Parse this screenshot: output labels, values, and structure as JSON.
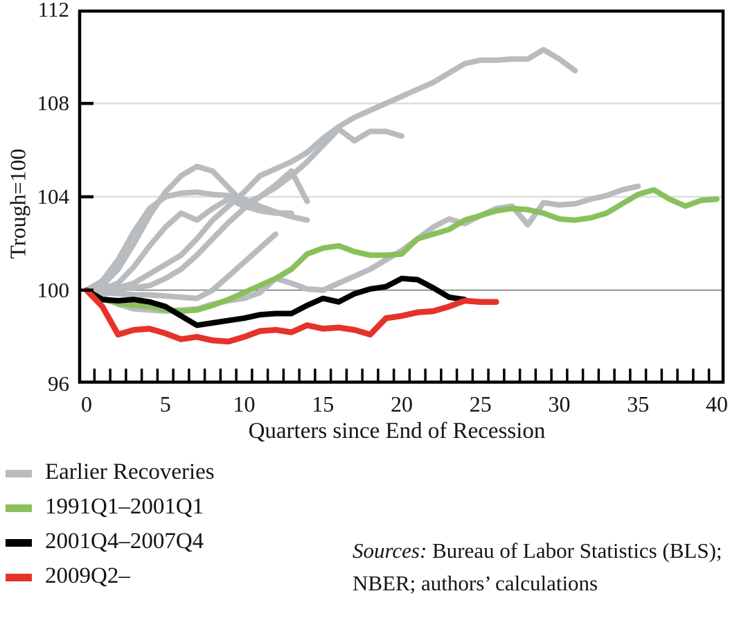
{
  "figure_type": "line-chart",
  "axes": {
    "y_title": "Trough=100",
    "x_title": "Quarters since End of Recession",
    "y_tick_labels": [
      "96",
      "100",
      "104",
      "108",
      "112"
    ],
    "x_tick_labels": [
      "0",
      "5",
      "10",
      "15",
      "20",
      "25",
      "30",
      "35",
      "40"
    ]
  },
  "legend": {
    "items": [
      {
        "label": "Earlier Recoveries",
        "color_key": "earlier"
      },
      {
        "label": "1991Q1–2001Q1",
        "color_key": "r1991"
      },
      {
        "label": "2001Q4–2007Q4",
        "color_key": "r2001"
      },
      {
        "label": "2009Q2–",
        "color_key": "r2009"
      }
    ]
  },
  "sources": {
    "label": "Sources:",
    "line1_rest": " Bureau of Labor Statistics (BLS);",
    "line2": "NBER; authors’ calculations"
  },
  "colors": {
    "earlier": "#b9bcbe",
    "r1991": "#8ac05c",
    "r2001": "#000000",
    "r2009": "#e63329",
    "grid_light": "#dcdee0",
    "grid_zero": "#8f9193",
    "frame": "#000000",
    "text": "#141414"
  },
  "chart_data": {
    "type": "line",
    "title": "",
    "xlabel": "Quarters since End of Recession",
    "ylabel": "Trough=100",
    "x_unit": "quarters since end of recession (index = quarter)",
    "xlim": [
      -0.5,
      40.5
    ],
    "ylim": [
      96,
      112
    ],
    "xticks": [
      0,
      5,
      10,
      15,
      20,
      25,
      30,
      35,
      40
    ],
    "yticks": [
      96,
      100,
      104,
      108,
      112
    ],
    "minor_ticks_x": "every quarter, offset 0.5, inside bottom axis",
    "gridlines": {
      "light": [
        104,
        108
      ],
      "zero": [
        100
      ]
    },
    "legend_position": "below-left",
    "series": [
      {
        "name": "Earlier recovery 1",
        "color_key": "earlier",
        "width": 8,
        "values": [
          100,
          100.05,
          100.1,
          100.3,
          100.7,
          101.1,
          101.5,
          102.2,
          103.0,
          103.6,
          104.2,
          104.9,
          105.2,
          105.5,
          105.9,
          106.5,
          107.0,
          107.4,
          107.7,
          108.0,
          108.3,
          108.6,
          108.9,
          109.3,
          109.7,
          109.85,
          109.85,
          109.9,
          109.9,
          110.3,
          109.9,
          109.4
        ]
      },
      {
        "name": "Earlier recovery 2",
        "color_key": "earlier",
        "width": 8,
        "values": [
          100,
          100.0,
          100.05,
          100.1,
          100.2,
          100.5,
          100.9,
          101.5,
          102.2,
          102.9,
          103.5,
          104.0,
          104.4,
          104.9,
          105.5,
          106.2,
          106.9,
          106.4,
          106.8,
          106.8,
          106.6
        ]
      },
      {
        "name": "Earlier recovery 3",
        "color_key": "earlier",
        "width": 8,
        "values": [
          100,
          100.2,
          100.9,
          102.0,
          103.2,
          104.2,
          104.9,
          105.3,
          105.1,
          104.4,
          103.7,
          104.0,
          104.5,
          105.1,
          103.8
        ]
      },
      {
        "name": "Earlier recovery 4",
        "color_key": "earlier",
        "width": 8,
        "values": [
          100,
          100.4,
          101.3,
          102.5,
          103.5,
          104.0,
          104.15,
          104.2,
          104.1,
          104.05,
          103.9,
          103.6,
          103.35,
          103.15,
          103.0
        ]
      },
      {
        "name": "Earlier recovery 5",
        "color_key": "earlier",
        "width": 8,
        "values": [
          100,
          99.9,
          99.85,
          99.8,
          99.8,
          99.75,
          99.7,
          99.65,
          100.0,
          100.6,
          101.2,
          101.8,
          102.4
        ]
      },
      {
        "name": "Earlier recovery 6",
        "color_key": "earlier",
        "width": 8,
        "values": [
          100,
          99.7,
          99.4,
          99.2,
          99.15,
          99.1,
          99.15,
          99.2,
          99.4,
          99.55,
          99.65,
          99.9,
          100.5,
          100.3,
          100.05,
          100.0,
          100.3,
          100.6,
          100.9,
          101.3,
          101.7,
          102.2,
          102.7,
          103.05,
          102.85,
          103.2,
          103.5,
          103.6,
          102.8,
          103.75,
          103.65,
          103.7,
          103.9,
          104.05,
          104.3,
          104.45
        ]
      },
      {
        "name": "Earlier recovery 7",
        "color_key": "earlier",
        "width": 8,
        "values": [
          100,
          100.05,
          100.3,
          101.0,
          101.9,
          102.7,
          103.3,
          103.0,
          103.5,
          103.9,
          103.6,
          103.4,
          103.3,
          103.3
        ]
      },
      {
        "name": "1991Q1–2001Q1",
        "color_key": "r1991",
        "width": 8,
        "values": [
          100,
          99.6,
          99.45,
          99.35,
          99.3,
          99.15,
          99.1,
          99.15,
          99.35,
          99.6,
          99.9,
          100.2,
          100.5,
          100.9,
          101.55,
          101.8,
          101.9,
          101.65,
          101.5,
          101.5,
          101.55,
          102.2,
          102.4,
          102.6,
          103.0,
          103.2,
          103.4,
          103.5,
          103.45,
          103.3,
          103.05,
          103.0,
          103.1,
          103.3,
          103.7,
          104.1,
          104.3,
          103.9,
          103.6,
          103.85,
          103.9
        ]
      },
      {
        "name": "2001Q4–2007Q4",
        "color_key": "r2001",
        "width": 8,
        "values": [
          100,
          99.6,
          99.55,
          99.6,
          99.5,
          99.3,
          98.9,
          98.5,
          98.6,
          98.7,
          98.8,
          98.95,
          99.0,
          99.0,
          99.35,
          99.65,
          99.5,
          99.85,
          100.05,
          100.15,
          100.5,
          100.45,
          100.1,
          99.7,
          99.6
        ]
      },
      {
        "name": "2009Q2–",
        "color_key": "r2009",
        "width": 8.5,
        "values": [
          100,
          99.3,
          98.1,
          98.3,
          98.35,
          98.15,
          97.9,
          98.0,
          97.85,
          97.8,
          98.0,
          98.25,
          98.3,
          98.2,
          98.5,
          98.35,
          98.4,
          98.3,
          98.1,
          98.8,
          98.9,
          99.05,
          99.1,
          99.3,
          99.55,
          99.5,
          99.5
        ]
      }
    ]
  }
}
